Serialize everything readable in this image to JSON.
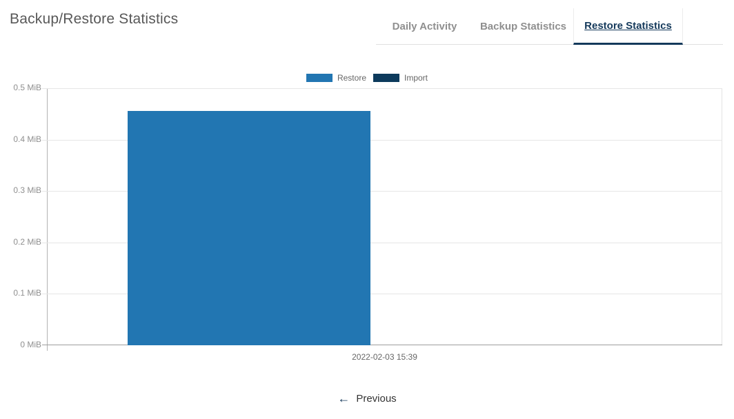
{
  "page": {
    "title": "Backup/Restore Statistics"
  },
  "tabs": {
    "items": [
      {
        "label": "Daily Activity",
        "active": false
      },
      {
        "label": "Backup Statistics",
        "active": false
      },
      {
        "label": "Restore Statistics",
        "active": true
      }
    ]
  },
  "chart_data": {
    "type": "bar",
    "title": "",
    "categories": [
      "2022-02-03 15:39"
    ],
    "series": [
      {
        "name": "Restore",
        "color": "#2276b2",
        "values": [
          0.456
        ]
      },
      {
        "name": "Import",
        "color": "#0d3a5c",
        "values": [
          0
        ]
      }
    ],
    "xlabel": "",
    "ylabel": "",
    "ylim": [
      0,
      0.5
    ],
    "yticks": [
      {
        "value": 0,
        "label": "0 MiB"
      },
      {
        "value": 0.1,
        "label": "0.1 MiB"
      },
      {
        "value": 0.2,
        "label": "0.2 MiB"
      },
      {
        "value": 0.3,
        "label": "0.3 MiB"
      },
      {
        "value": 0.4,
        "label": "0.4 MiB"
      },
      {
        "value": 0.5,
        "label": "0.5 MiB"
      }
    ],
    "grid": true,
    "legend_position": "top",
    "bar_layout": {
      "category_percentage": 0.8,
      "bar_percentage": 0.9
    }
  },
  "footer": {
    "previous_label": "Previous",
    "previous_icon": "left-arrow"
  },
  "colors": {
    "accent_navy": "#14395b",
    "restore_blue": "#2276b2",
    "import_navy": "#0d3a5c",
    "tab_inactive_text": "#8f8f8f",
    "grid_line": "#e6e6e6",
    "zero_line": "#9c9c9c"
  }
}
